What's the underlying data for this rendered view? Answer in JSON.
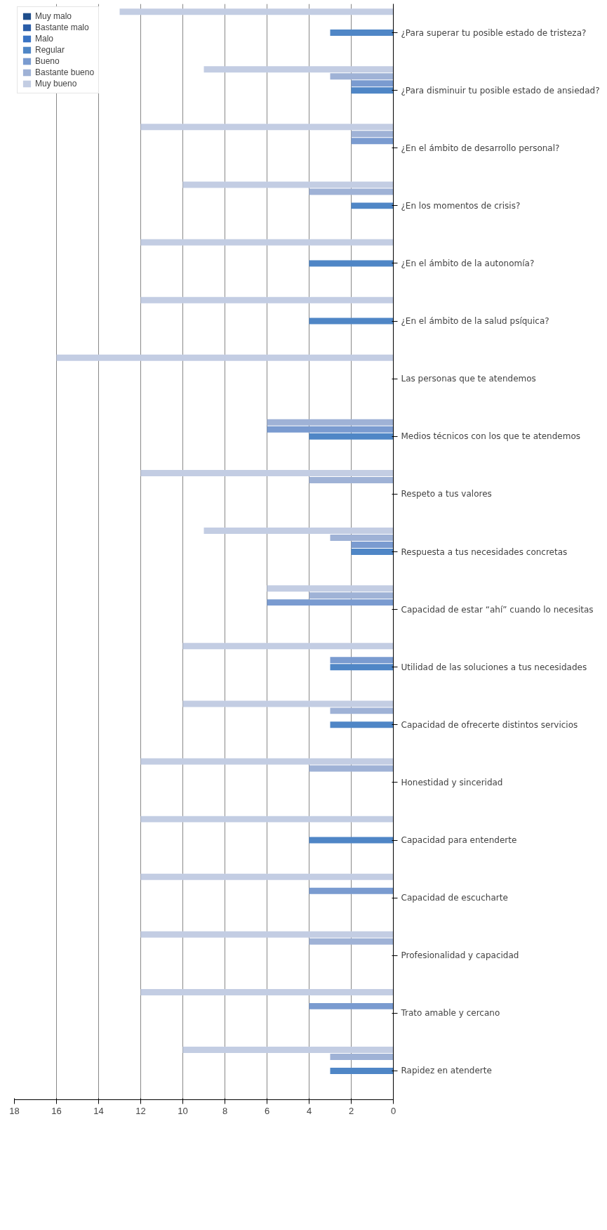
{
  "chart_data": {
    "type": "bar",
    "orientation": "horizontal",
    "categories": [
      "¿Para superar tu posible estado de tristeza?",
      "¿Para disminuir tu posible estado de ansiedad?",
      "¿En el ámbito de desarrollo personal?",
      "¿En los momentos de crisis?",
      "¿En el ámbito de la autonomía?",
      "¿En el ámbito de la salud psíquica?",
      "Las personas que te atendemos",
      "Medios técnicos con los que te atendemos",
      "Respeto a tus valores",
      "Respuesta a tus necesidades concretas",
      "Capacidad de estar “ahí” cuando lo necesitas",
      "Utilidad de las soluciones a tus necesidades",
      "Capacidad de ofrecerte distintos servicios",
      "Honestidad y sinceridad",
      "Capacidad para entenderte",
      "Capacidad de escucharte",
      "Profesionalidad y capacidad",
      "Trato amable y cercano",
      "Rapidez en atenderte"
    ],
    "series": [
      {
        "name": "Muy malo",
        "color": "#1f4e8c",
        "values": [
          0,
          0,
          0,
          0,
          0,
          0,
          0,
          0,
          0,
          0,
          0,
          0,
          0,
          0,
          0,
          0,
          0,
          0,
          0
        ]
      },
      {
        "name": "Bastante malo",
        "color": "#2a5da8",
        "values": [
          0,
          0,
          0,
          0,
          0,
          0,
          0,
          0,
          0,
          0,
          0,
          0,
          0,
          0,
          0,
          0,
          0,
          0,
          0
        ]
      },
      {
        "name": "Malo",
        "color": "#3a74c4",
        "values": [
          0,
          0,
          0,
          0,
          0,
          0,
          0,
          0,
          0,
          0,
          0,
          0,
          0,
          0,
          0,
          0,
          0,
          0,
          0
        ]
      },
      {
        "name": "Regular",
        "color": "#4f86c6",
        "values": [
          3,
          2,
          0,
          2,
          4,
          4,
          0,
          4,
          0,
          2,
          0,
          3,
          3,
          0,
          4,
          0,
          0,
          0,
          3
        ]
      },
      {
        "name": "Bueno",
        "color": "#7a9bd0",
        "values": [
          0,
          2,
          2,
          0,
          0,
          0,
          0,
          6,
          0,
          2,
          6,
          3,
          0,
          0,
          0,
          4,
          0,
          4,
          0
        ]
      },
      {
        "name": "Bastante bueno",
        "color": "#9fb2d6",
        "values": [
          0,
          3,
          2,
          4,
          0,
          0,
          0,
          6,
          4,
          3,
          4,
          0,
          3,
          4,
          0,
          0,
          4,
          0,
          3
        ]
      },
      {
        "name": "Muy bueno",
        "color": "#c3cde3",
        "values": [
          13,
          9,
          12,
          10,
          12,
          12,
          16,
          0,
          12,
          9,
          6,
          10,
          10,
          12,
          12,
          12,
          12,
          12,
          10
        ]
      }
    ],
    "xlim": [
      18,
      0
    ],
    "xticks": [
      0,
      2,
      4,
      6,
      8,
      10,
      12,
      14,
      16,
      18
    ],
    "grid": "x",
    "legend": "top left"
  }
}
